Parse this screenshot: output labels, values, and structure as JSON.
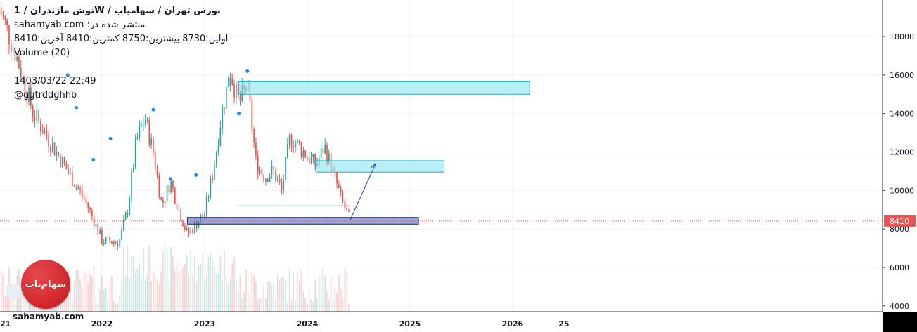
{
  "header": {
    "title": "نوش مازندران  /  1W  /  بورس تهران / سهامیاب",
    "published": "sahamyab.com :منتشر شده در",
    "ohlc": "اولین:8730  بیشترین:8750  کمترین:8410  آخرین:8410",
    "volume": "Volume (20)",
    "datetime": "1403/03/22 22:49",
    "author": "@ggtrddghhb"
  },
  "branding": {
    "logo_text": "سهام‌یاب",
    "site": "sahamyab.com"
  },
  "colors": {
    "up": "#26a69a",
    "down": "#ef5350",
    "zone": "#7fe3ee",
    "support": "#1a237e",
    "arrow": "#1e3ca8",
    "dot": "#1e88e5",
    "price_tag": "#ef5350"
  },
  "chart_data": {
    "type": "candlestick",
    "timeframe": "1W",
    "last_price": 8410,
    "last_price_label": "8410",
    "ylim": [
      3700,
      19900
    ],
    "y_ticks": [
      4000,
      6000,
      8000,
      10000,
      12000,
      14000,
      16000,
      18000
    ],
    "y_tick_labels": [
      "4000",
      "6000",
      "8000",
      "10000",
      "12000",
      "14000",
      "16000",
      "18000"
    ],
    "x_ticks": [
      "21",
      "2022",
      "2023",
      "2024",
      "2025",
      "2026",
      "25"
    ],
    "trend_path": [
      [
        "2021-01",
        19500
      ],
      [
        "2021-03",
        17000
      ],
      [
        "2021-05",
        14000
      ],
      [
        "2021-07",
        12500
      ],
      [
        "2021-09",
        11000
      ],
      [
        "2021-11",
        9500
      ],
      [
        "2021-12",
        8500
      ],
      [
        "2022-01",
        7400
      ],
      [
        "2022-03",
        7300
      ],
      [
        "2022-04",
        9000
      ],
      [
        "2022-05",
        12500
      ],
      [
        "2022-06",
        13800
      ],
      [
        "2022-07",
        12000
      ],
      [
        "2022-08",
        9200
      ],
      [
        "2022-09",
        10500
      ],
      [
        "2022-10",
        9000
      ],
      [
        "2022-11",
        7700
      ],
      [
        "2023-01",
        8800
      ],
      [
        "2023-02",
        11000
      ],
      [
        "2023-03",
        14000
      ],
      [
        "2023-04",
        16200
      ],
      [
        "2023-05",
        14500
      ],
      [
        "2023-06",
        15500
      ],
      [
        "2023-07",
        11500
      ],
      [
        "2023-08",
        10700
      ],
      [
        "2023-09",
        11000
      ],
      [
        "2023-10",
        10000
      ],
      [
        "2023-11",
        12800
      ],
      [
        "2024-01",
        11800
      ],
      [
        "2024-02",
        11300
      ],
      [
        "2024-03",
        12300
      ],
      [
        "2024-04",
        11000
      ],
      [
        "2024-05",
        9500
      ],
      [
        "2024-06",
        8410
      ]
    ],
    "zones": [
      {
        "kind": "resistance",
        "x_from": "2023-05",
        "x_to": "2026-03",
        "y_from": 15000,
        "y_to": 15650
      },
      {
        "kind": "target",
        "x_from": "2024-02",
        "x_to": "2025-05",
        "y_from": 10950,
        "y_to": 11550
      },
      {
        "kind": "support",
        "x_from": "2022-11",
        "x_to": "2025-02",
        "y_from": 8250,
        "y_to": 8600
      }
    ],
    "projection_arrow": {
      "from": [
        "2024-06",
        8450
      ],
      "to": [
        "2024-09",
        11400
      ]
    },
    "horizontal_line": {
      "x_from": "2023-05",
      "x_to": "2024-06",
      "y": 9200
    }
  }
}
